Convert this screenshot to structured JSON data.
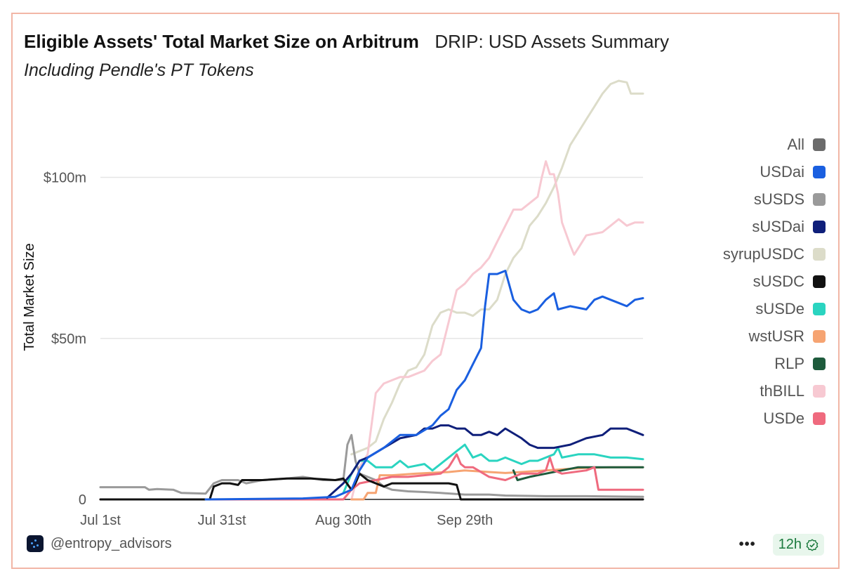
{
  "header": {
    "title": "Eligible Assets' Total Market Size on Arbitrum",
    "dashboard": "DRIP: USD Assets Summary",
    "subtitle": "Including Pendle's PT Tokens"
  },
  "footer": {
    "handle": "@entropy_advisors",
    "more": "•••",
    "refresh_label": "12h"
  },
  "colors": {
    "border": "#f2b6a6",
    "grid": "#e6e6e6"
  },
  "chart_data": {
    "type": "line",
    "ylabel": "Total Market Size",
    "ylim": [
      0,
      130
    ],
    "xlim": [
      0,
      134
    ],
    "yticks": [
      {
        "value": 0,
        "label": "0"
      },
      {
        "value": 50,
        "label": "$50m"
      },
      {
        "value": 100,
        "label": "$100m"
      }
    ],
    "xticks": [
      {
        "value": 0,
        "label": "Jul 1st"
      },
      {
        "value": 30,
        "label": "Jul 31st"
      },
      {
        "value": 60,
        "label": "Aug 30th"
      },
      {
        "value": 90,
        "label": "Sep 29th"
      }
    ],
    "legend_position": "right",
    "series": [
      {
        "name": "All",
        "color": "#6b6b6b",
        "points": []
      },
      {
        "name": "USDai",
        "color": "#1a5fe0",
        "points": [
          [
            26,
            0
          ],
          [
            50,
            0.3
          ],
          [
            58,
            0.8
          ],
          [
            62,
            3
          ],
          [
            64,
            9
          ],
          [
            66,
            13
          ],
          [
            70,
            16
          ],
          [
            74,
            20
          ],
          [
            78,
            20
          ],
          [
            82,
            23
          ],
          [
            84,
            26
          ],
          [
            86,
            28
          ],
          [
            88,
            34
          ],
          [
            90,
            37
          ],
          [
            92,
            42
          ],
          [
            94,
            47
          ],
          [
            95,
            60
          ],
          [
            96,
            70
          ],
          [
            98,
            70
          ],
          [
            100,
            71
          ],
          [
            102,
            62
          ],
          [
            104,
            59
          ],
          [
            106,
            58
          ],
          [
            108,
            59
          ],
          [
            110,
            62
          ],
          [
            112,
            64
          ],
          [
            113,
            59
          ],
          [
            116,
            60
          ],
          [
            120,
            59
          ],
          [
            122,
            62
          ],
          [
            124,
            63
          ],
          [
            126,
            62
          ],
          [
            128,
            61
          ],
          [
            130,
            60
          ],
          [
            132,
            62
          ],
          [
            134,
            62.5
          ]
        ]
      },
      {
        "name": "sUSDS",
        "color": "#9a9a9a",
        "points": [
          [
            0,
            3.8
          ],
          [
            11,
            3.8
          ],
          [
            12,
            3
          ],
          [
            14,
            3.2
          ],
          [
            18,
            3
          ],
          [
            20,
            2
          ],
          [
            26,
            1.8
          ],
          [
            28,
            5
          ],
          [
            30,
            6
          ],
          [
            34,
            6
          ],
          [
            36,
            5
          ],
          [
            40,
            6
          ],
          [
            46,
            6.5
          ],
          [
            50,
            7
          ],
          [
            55,
            6
          ],
          [
            60,
            6
          ],
          [
            61,
            17
          ],
          [
            62,
            20
          ],
          [
            63,
            12
          ],
          [
            64,
            8
          ],
          [
            68,
            6
          ],
          [
            70,
            4
          ],
          [
            72,
            3
          ],
          [
            76,
            2.5
          ],
          [
            80,
            2.3
          ],
          [
            84,
            2
          ],
          [
            90,
            1.5
          ],
          [
            96,
            1.5
          ],
          [
            100,
            1.2
          ],
          [
            110,
            1
          ],
          [
            120,
            1
          ],
          [
            134,
            0.8
          ]
        ]
      },
      {
        "name": "sUSDai",
        "color": "#0f1f7a",
        "points": [
          [
            56,
            0.5
          ],
          [
            60,
            5
          ],
          [
            62,
            8
          ],
          [
            64,
            12
          ],
          [
            66,
            13
          ],
          [
            70,
            16
          ],
          [
            74,
            19
          ],
          [
            78,
            20
          ],
          [
            80,
            22
          ],
          [
            82,
            22
          ],
          [
            84,
            23
          ],
          [
            86,
            23
          ],
          [
            88,
            22
          ],
          [
            90,
            22
          ],
          [
            92,
            20
          ],
          [
            94,
            20
          ],
          [
            96,
            21
          ],
          [
            98,
            20
          ],
          [
            100,
            22
          ],
          [
            104,
            19
          ],
          [
            106,
            17
          ],
          [
            108,
            16
          ],
          [
            112,
            16
          ],
          [
            116,
            17
          ],
          [
            120,
            19
          ],
          [
            124,
            20
          ],
          [
            126,
            22
          ],
          [
            130,
            22
          ],
          [
            132,
            21
          ],
          [
            134,
            20
          ]
        ]
      },
      {
        "name": "syrupUSDC",
        "color": "#dcdcc9",
        "points": [
          [
            62,
            14
          ],
          [
            66,
            16
          ],
          [
            68,
            18
          ],
          [
            70,
            25
          ],
          [
            72,
            30
          ],
          [
            74,
            36
          ],
          [
            76,
            40
          ],
          [
            78,
            41
          ],
          [
            80,
            45
          ],
          [
            82,
            54
          ],
          [
            84,
            58
          ],
          [
            86,
            59
          ],
          [
            88,
            58
          ],
          [
            90,
            58
          ],
          [
            92,
            57
          ],
          [
            94,
            59
          ],
          [
            96,
            59
          ],
          [
            98,
            62
          ],
          [
            100,
            70
          ],
          [
            102,
            75
          ],
          [
            104,
            78
          ],
          [
            106,
            85
          ],
          [
            108,
            88
          ],
          [
            110,
            92
          ],
          [
            112,
            97
          ],
          [
            114,
            103
          ],
          [
            116,
            110
          ],
          [
            118,
            114
          ],
          [
            120,
            118
          ],
          [
            122,
            122
          ],
          [
            124,
            126
          ],
          [
            126,
            129
          ],
          [
            128,
            130
          ],
          [
            130,
            129.5
          ],
          [
            131,
            126
          ],
          [
            134,
            126
          ]
        ]
      },
      {
        "name": "sUSDC",
        "color": "#111111",
        "points": [
          [
            0,
            0
          ],
          [
            27,
            0
          ],
          [
            28,
            4
          ],
          [
            30,
            5
          ],
          [
            32,
            5
          ],
          [
            34,
            4.5
          ],
          [
            35,
            6
          ],
          [
            40,
            6
          ],
          [
            46,
            6.5
          ],
          [
            52,
            6.5
          ],
          [
            58,
            6
          ],
          [
            60,
            6.5
          ],
          [
            62,
            3
          ],
          [
            63,
            5
          ],
          [
            64,
            8
          ],
          [
            66,
            6
          ],
          [
            70,
            4
          ],
          [
            72,
            5
          ],
          [
            80,
            5
          ],
          [
            86,
            5
          ],
          [
            88,
            4.5
          ],
          [
            89,
            0
          ],
          [
            134,
            0
          ]
        ]
      },
      {
        "name": "sUSDe",
        "color": "#2ad4c0",
        "points": [
          [
            60,
            2
          ],
          [
            62,
            8
          ],
          [
            64,
            12
          ],
          [
            66,
            12
          ],
          [
            68,
            10
          ],
          [
            72,
            10
          ],
          [
            74,
            12
          ],
          [
            76,
            10
          ],
          [
            80,
            11
          ],
          [
            82,
            9
          ],
          [
            84,
            11
          ],
          [
            86,
            13
          ],
          [
            88,
            15
          ],
          [
            90,
            17
          ],
          [
            92,
            13
          ],
          [
            94,
            14
          ],
          [
            96,
            12
          ],
          [
            98,
            12
          ],
          [
            100,
            13
          ],
          [
            104,
            11
          ],
          [
            106,
            12
          ],
          [
            108,
            12
          ],
          [
            110,
            13
          ],
          [
            112,
            14
          ],
          [
            113,
            16
          ],
          [
            114,
            13
          ],
          [
            118,
            14
          ],
          [
            122,
            14
          ],
          [
            126,
            13
          ],
          [
            130,
            13
          ],
          [
            134,
            12.5
          ]
        ]
      },
      {
        "name": "wstUSR",
        "color": "#f6a472",
        "points": [
          [
            62,
            0
          ],
          [
            65,
            0
          ],
          [
            66,
            2
          ],
          [
            68,
            2
          ],
          [
            69,
            7.5
          ],
          [
            72,
            7.5
          ],
          [
            78,
            8
          ],
          [
            86,
            8.5
          ],
          [
            90,
            9
          ],
          [
            96,
            8.5
          ],
          [
            100,
            8.2
          ],
          [
            104,
            8.5
          ],
          [
            110,
            9
          ],
          [
            116,
            9.5
          ],
          [
            120,
            9.8
          ],
          [
            126,
            10
          ],
          [
            134,
            10
          ]
        ]
      },
      {
        "name": "RLP",
        "color": "#1e5b3c",
        "points": [
          [
            102,
            9
          ],
          [
            103,
            6
          ],
          [
            106,
            7
          ],
          [
            110,
            8
          ],
          [
            114,
            9
          ],
          [
            118,
            10
          ],
          [
            122,
            10
          ],
          [
            126,
            10
          ],
          [
            130,
            10
          ],
          [
            134,
            10
          ]
        ]
      },
      {
        "name": "thBILL",
        "color": "#f7c9d2",
        "points": [
          [
            62,
            0
          ],
          [
            64,
            10
          ],
          [
            66,
            14
          ],
          [
            68,
            33
          ],
          [
            70,
            36
          ],
          [
            72,
            37
          ],
          [
            74,
            38
          ],
          [
            76,
            38
          ],
          [
            78,
            39
          ],
          [
            80,
            40
          ],
          [
            82,
            43
          ],
          [
            84,
            45
          ],
          [
            86,
            55
          ],
          [
            88,
            65
          ],
          [
            90,
            67
          ],
          [
            92,
            70
          ],
          [
            94,
            72
          ],
          [
            96,
            75
          ],
          [
            98,
            80
          ],
          [
            100,
            85
          ],
          [
            102,
            90
          ],
          [
            104,
            90
          ],
          [
            106,
            92
          ],
          [
            108,
            94
          ],
          [
            109,
            100
          ],
          [
            110,
            105
          ],
          [
            111,
            101
          ],
          [
            112,
            101
          ],
          [
            113,
            95
          ],
          [
            114,
            86
          ],
          [
            116,
            79
          ],
          [
            117,
            76
          ],
          [
            118,
            78
          ],
          [
            120,
            82
          ],
          [
            124,
            83
          ],
          [
            126,
            85
          ],
          [
            128,
            87
          ],
          [
            130,
            85
          ],
          [
            132,
            86
          ],
          [
            134,
            86
          ]
        ]
      },
      {
        "name": "USDe",
        "color": "#ef6a7e",
        "points": [
          [
            0,
            0
          ],
          [
            6,
            0
          ],
          [
            60,
            0
          ],
          [
            62,
            3
          ],
          [
            64,
            5
          ],
          [
            68,
            6
          ],
          [
            72,
            7
          ],
          [
            76,
            7
          ],
          [
            80,
            7.5
          ],
          [
            84,
            8
          ],
          [
            86,
            10
          ],
          [
            88,
            14
          ],
          [
            89,
            11
          ],
          [
            90,
            10
          ],
          [
            92,
            10
          ],
          [
            96,
            7
          ],
          [
            100,
            6
          ],
          [
            102,
            7
          ],
          [
            104,
            8
          ],
          [
            108,
            8
          ],
          [
            110,
            9
          ],
          [
            111,
            13
          ],
          [
            112,
            9
          ],
          [
            114,
            8
          ],
          [
            120,
            9
          ],
          [
            122,
            10
          ],
          [
            123,
            3
          ],
          [
            124,
            3
          ],
          [
            134,
            3
          ]
        ]
      }
    ]
  }
}
